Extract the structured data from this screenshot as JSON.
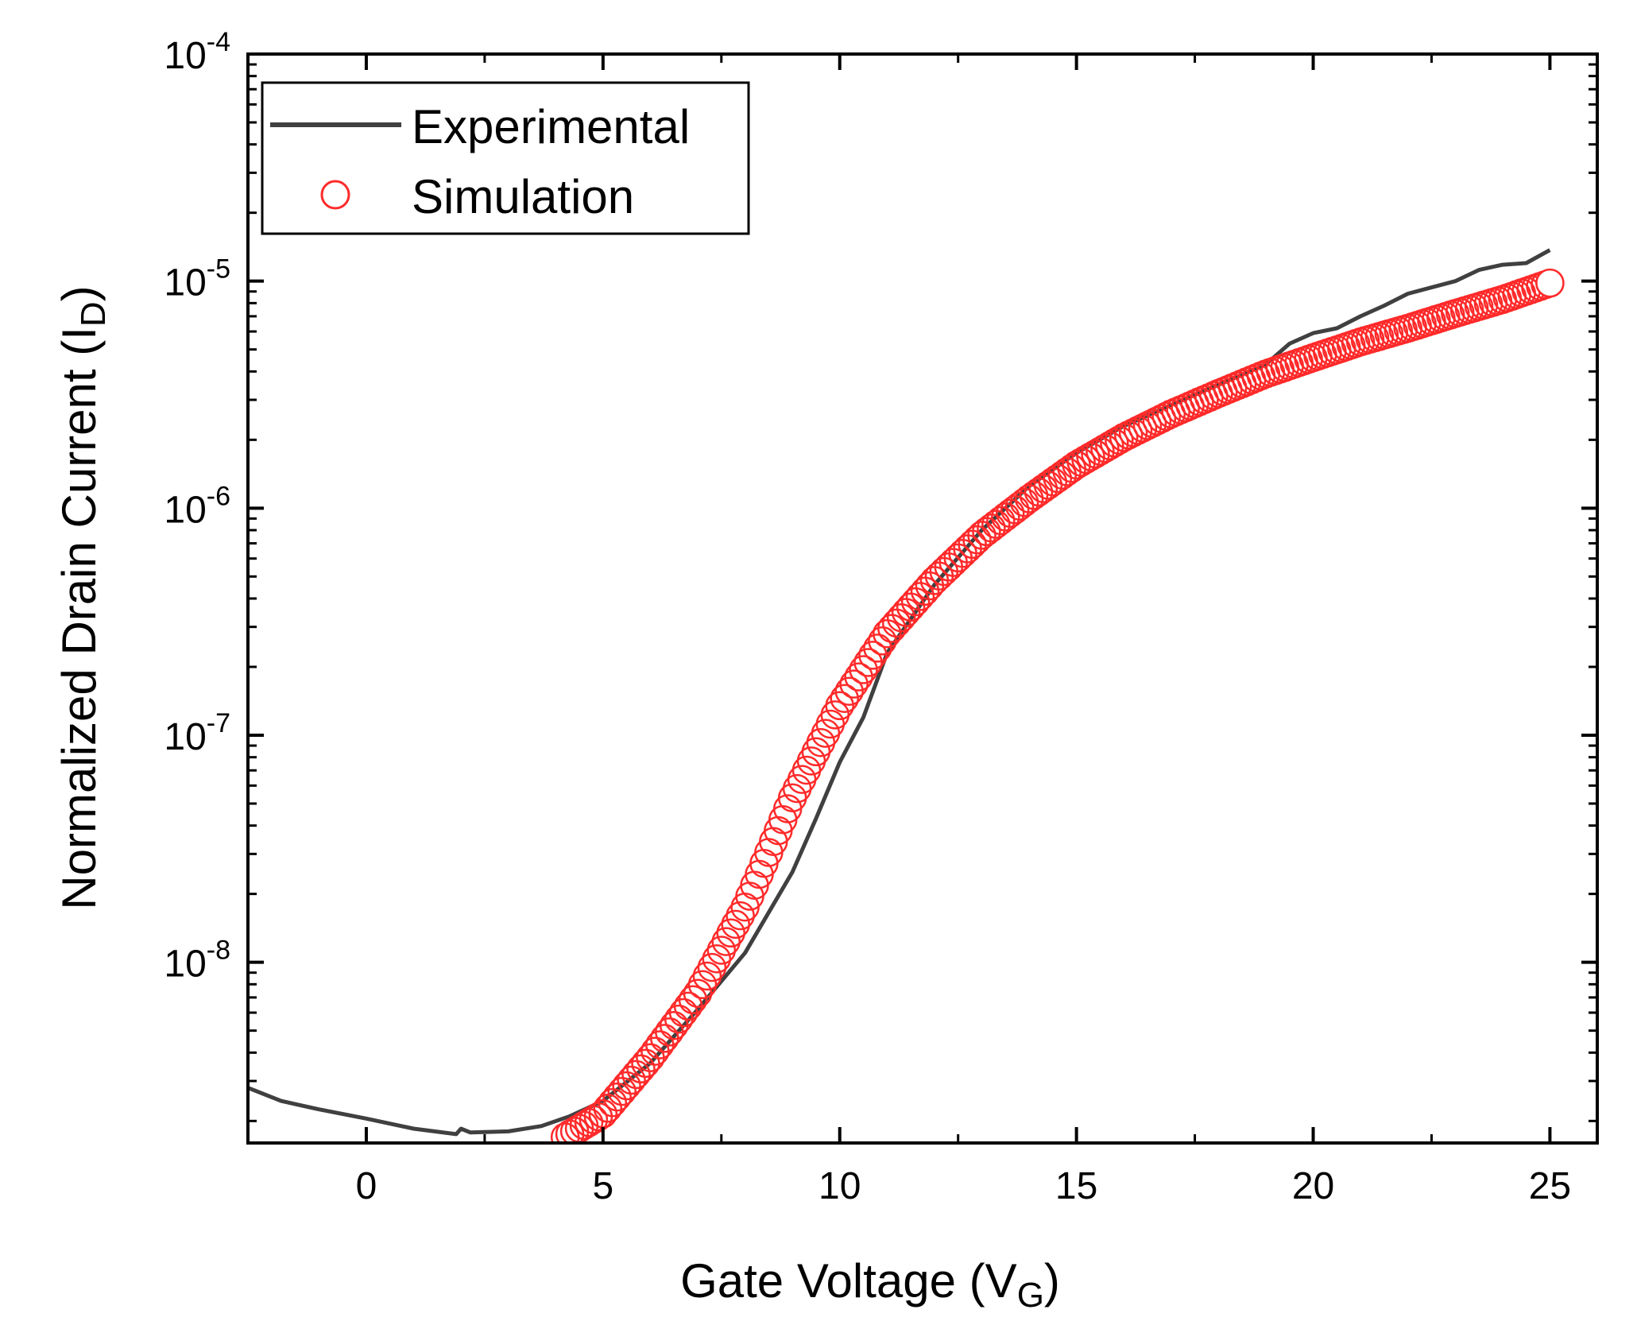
{
  "chart_data": {
    "type": "line",
    "xlabel": {
      "main": "Gate Voltage (V",
      "sub": "G",
      "tail": ")"
    },
    "ylabel": {
      "main": "Normalized Drain Current (I",
      "sub": "D",
      "tail": ")"
    },
    "xlim": [
      -2.5,
      26
    ],
    "ylim": [
      1.6e-09,
      0.0001
    ],
    "yscale": "log",
    "x_ticks": [
      0,
      5,
      10,
      15,
      20,
      25
    ],
    "x_tick_labels": [
      "0",
      "5",
      "10",
      "15",
      "20",
      "25"
    ],
    "y_ticks": [
      {
        "value": 1e-08,
        "base": "10",
        "exp": "-8"
      },
      {
        "value": 1e-07,
        "base": "10",
        "exp": "-7"
      },
      {
        "value": 1e-06,
        "base": "10",
        "exp": "-6"
      },
      {
        "value": 1e-05,
        "base": "10",
        "exp": "-5"
      },
      {
        "value": 0.0001,
        "base": "10",
        "exp": "-4"
      }
    ],
    "legend": {
      "position": "top-left",
      "entries": [
        {
          "label": "Experimental",
          "marker": "line",
          "color": "#404040"
        },
        {
          "label": "Simulation",
          "marker": "open-circle",
          "color": "#ff2a2a"
        }
      ]
    },
    "series": [
      {
        "name": "Experimental",
        "style": "line",
        "color": "#404040",
        "points": [
          [
            -2.5,
            2.8e-09
          ],
          [
            -1.8,
            2.45e-09
          ],
          [
            -1,
            2.25e-09
          ],
          [
            0,
            2.05e-09
          ],
          [
            1,
            1.85e-09
          ],
          [
            1.9,
            1.75e-09
          ],
          [
            2.0,
            1.85e-09
          ],
          [
            2.2,
            1.78e-09
          ],
          [
            3,
            1.8e-09
          ],
          [
            3.7,
            1.9e-09
          ],
          [
            4.3,
            2.1e-09
          ],
          [
            5,
            2.45e-09
          ],
          [
            6,
            3.6e-09
          ],
          [
            7,
            6.2e-09
          ],
          [
            8,
            1.1e-08
          ],
          [
            9,
            2.5e-08
          ],
          [
            9.5,
            4.3e-08
          ],
          [
            10,
            7.6e-08
          ],
          [
            10.5,
            1.2e-07
          ],
          [
            11,
            2.3e-07
          ],
          [
            12,
            4.6e-07
          ],
          [
            13,
            8e-07
          ],
          [
            14,
            1.25e-06
          ],
          [
            15,
            1.75e-06
          ],
          [
            16,
            2.3e-06
          ],
          [
            17,
            2.85e-06
          ],
          [
            18,
            3.5e-06
          ],
          [
            19,
            4.3e-06
          ],
          [
            19.5,
            5.3e-06
          ],
          [
            20,
            5.9e-06
          ],
          [
            20.5,
            6.2e-06
          ],
          [
            21,
            7e-06
          ],
          [
            21.5,
            7.8e-06
          ],
          [
            22,
            8.8e-06
          ],
          [
            23,
            1e-05
          ],
          [
            23.5,
            1.12e-05
          ],
          [
            24,
            1.18e-05
          ],
          [
            24.5,
            1.2e-05
          ],
          [
            25,
            1.37e-05
          ]
        ]
      },
      {
        "name": "Simulation",
        "style": "open-circle",
        "color": "#ff2a2a",
        "points": [
          [
            4.2,
            1.7e-09
          ],
          [
            5,
            2.15e-09
          ],
          [
            6,
            3.8e-09
          ],
          [
            7,
            7.3e-09
          ],
          [
            8,
            1.75e-08
          ],
          [
            9,
            5.3e-08
          ],
          [
            10,
            1.35e-07
          ],
          [
            11,
            2.8e-07
          ],
          [
            12,
            4.8e-07
          ],
          [
            13,
            7.6e-07
          ],
          [
            14,
            1.1e-06
          ],
          [
            15,
            1.55e-06
          ],
          [
            16,
            2.05e-06
          ],
          [
            17,
            2.6e-06
          ],
          [
            18,
            3.2e-06
          ],
          [
            19,
            3.9e-06
          ],
          [
            20,
            4.6e-06
          ],
          [
            21,
            5.4e-06
          ],
          [
            22,
            6.2e-06
          ],
          [
            23,
            7.2e-06
          ],
          [
            24,
            8.3e-06
          ],
          [
            25,
            9.8e-06
          ]
        ]
      }
    ]
  }
}
